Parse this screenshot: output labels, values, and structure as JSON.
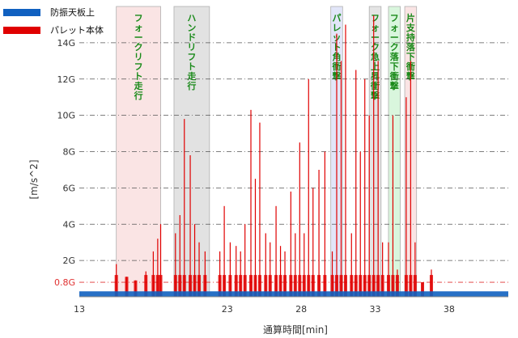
{
  "chart_data": {
    "type": "area",
    "xlabel": "通算時間[min]",
    "ylabel": "[m/s^2]",
    "xlim": [
      13,
      42
    ],
    "x_ticks": [
      13,
      23,
      28,
      33,
      38
    ],
    "x_tick_labels": [
      "13",
      "23",
      "28",
      "33",
      "38"
    ],
    "ylim": [
      0,
      16
    ],
    "y_ticks": [
      2,
      4,
      6,
      8,
      10,
      12,
      14
    ],
    "y_tick_labels": [
      "2G",
      "4G",
      "6G",
      "8G",
      "10G",
      "12G",
      "14G"
    ],
    "threshold": {
      "value": 0.8,
      "label": "0.8G",
      "color": "#e03030"
    },
    "grid": "horizontal dash-dot",
    "legend_position": "top-left",
    "series": [
      {
        "name": "防振天板上",
        "color": "#1060c0"
      },
      {
        "name": "パレット本体",
        "color": "#e00000"
      }
    ],
    "events": [
      {
        "label": "フォークリフト走行",
        "start": 15.5,
        "end": 18.5,
        "color": "#f8d8d8"
      },
      {
        "label": "ハンドリフト走行",
        "start": 19.4,
        "end": 21.8,
        "color": "#d6d6d6"
      },
      {
        "label": "パレット角衝撃",
        "start": 30.0,
        "end": 30.8,
        "color": "#d6dcf6"
      },
      {
        "label": "フォーク急上昇衝撃",
        "start": 32.6,
        "end": 33.4,
        "color": "#d8d8d8"
      },
      {
        "label": "フォーク落下衝撃",
        "start": 33.9,
        "end": 34.7,
        "color": "#c9f2cf"
      },
      {
        "label": "片支持落下衝撃",
        "start": 35.0,
        "end": 35.8,
        "color": "#f8d8d8"
      }
    ],
    "pallet_spikes": [
      [
        15.5,
        1.8
      ],
      [
        16.2,
        1.1
      ],
      [
        16.8,
        0.9
      ],
      [
        17.5,
        1.4
      ],
      [
        18.0,
        2.5
      ],
      [
        18.3,
        3.2
      ],
      [
        18.5,
        4.0
      ],
      [
        19.5,
        3.5
      ],
      [
        19.8,
        4.5
      ],
      [
        20.1,
        9.8
      ],
      [
        20.5,
        7.8
      ],
      [
        20.8,
        4.0
      ],
      [
        21.1,
        3.0
      ],
      [
        21.5,
        2.5
      ],
      [
        22.5,
        2.5
      ],
      [
        22.8,
        5.0
      ],
      [
        23.2,
        3.0
      ],
      [
        23.6,
        2.8
      ],
      [
        23.9,
        2.5
      ],
      [
        24.2,
        4.0
      ],
      [
        24.6,
        10.3
      ],
      [
        24.9,
        6.5
      ],
      [
        25.2,
        9.6
      ],
      [
        25.6,
        3.5
      ],
      [
        25.9,
        3.0
      ],
      [
        26.3,
        5.0
      ],
      [
        26.6,
        2.8
      ],
      [
        26.9,
        2.5
      ],
      [
        27.3,
        5.8
      ],
      [
        27.6,
        3.5
      ],
      [
        27.9,
        8.5
      ],
      [
        28.2,
        3.5
      ],
      [
        28.5,
        12.0
      ],
      [
        28.8,
        6.0
      ],
      [
        29.2,
        7.0
      ],
      [
        29.6,
        8.0
      ],
      [
        30.1,
        2.5
      ],
      [
        30.4,
        14.5
      ],
      [
        30.7,
        13.0
      ],
      [
        31.0,
        15.0
      ],
      [
        31.4,
        3.5
      ],
      [
        31.7,
        12.5
      ],
      [
        32.0,
        8.0
      ],
      [
        32.3,
        12.0
      ],
      [
        32.6,
        10.0
      ],
      [
        32.9,
        15.5
      ],
      [
        33.2,
        13.0
      ],
      [
        33.5,
        3.0
      ],
      [
        33.9,
        3.0
      ],
      [
        34.2,
        10.0
      ],
      [
        34.5,
        1.5
      ],
      [
        35.1,
        11.0
      ],
      [
        35.4,
        13.0
      ],
      [
        35.7,
        3.0
      ],
      [
        36.2,
        0.8
      ],
      [
        36.8,
        1.5
      ]
    ],
    "isolator_level": 0.3
  }
}
